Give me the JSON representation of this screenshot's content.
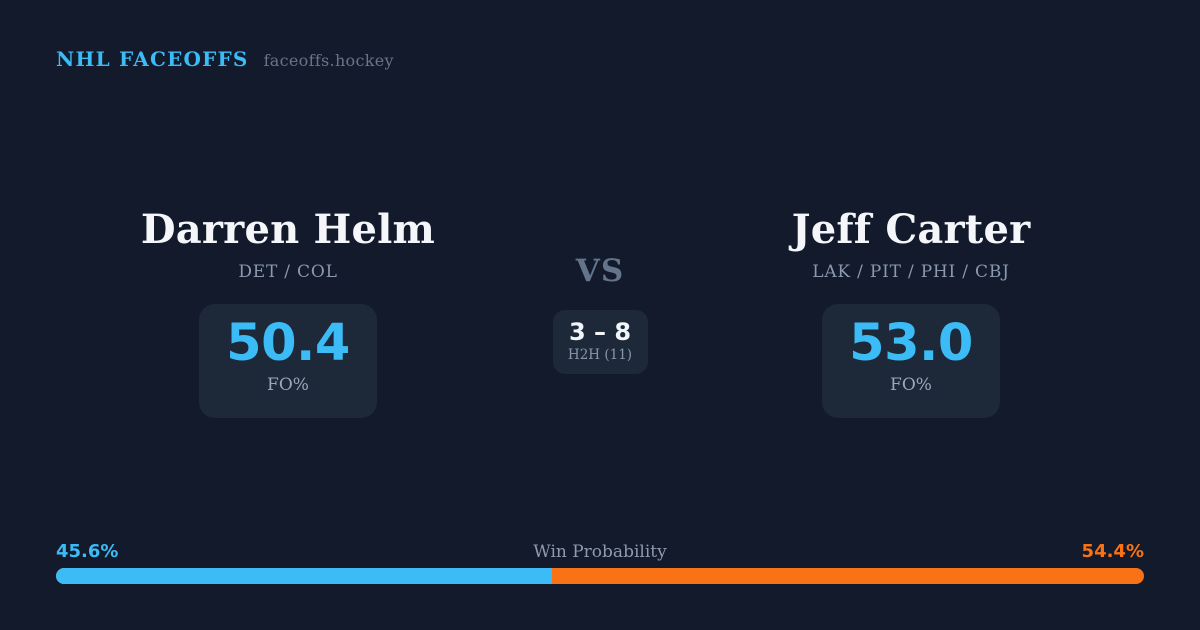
{
  "header": {
    "title": "NHL FACEOFFS",
    "subtitle": "faceoffs.hockey"
  },
  "players": {
    "left": {
      "name": "Darren Helm",
      "teams": "DET / COL",
      "stat_value": "50.4",
      "stat_label": "FO%"
    },
    "right": {
      "name": "Jeff Carter",
      "teams": "LAK / PIT / PHI / CBJ",
      "stat_value": "53.0",
      "stat_label": "FO%"
    }
  },
  "center": {
    "vs_label": "VS",
    "h2h_score": "3 – 8",
    "h2h_label": "H2H (11)"
  },
  "win_probability": {
    "label": "Win Probability",
    "left_pct_text": "45.6%",
    "right_pct_text": "54.4%",
    "left_value": 45.6,
    "right_value": 54.4
  },
  "colors": {
    "background": "#121a2c",
    "card": "#1d2839",
    "accent_blue": "#3bbcf6",
    "accent_orange": "#f97316",
    "name_white": "#f4f6fa",
    "muted_slate": "#8b99ae"
  }
}
